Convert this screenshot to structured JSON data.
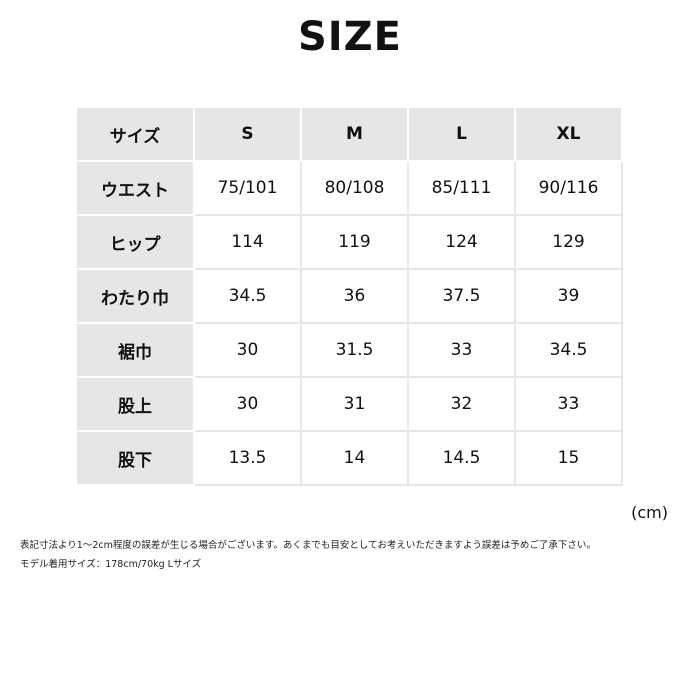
{
  "title": "SIZE",
  "table": {
    "header": [
      "サイズ",
      "S",
      "M",
      "L",
      "XL"
    ],
    "rows": [
      {
        "label": "ウエスト",
        "values": [
          "75/101",
          "80/108",
          "85/111",
          "90/116"
        ]
      },
      {
        "label": "ヒップ",
        "values": [
          "114",
          "119",
          "124",
          "129"
        ]
      },
      {
        "label": "わたり巾",
        "values": [
          "34.5",
          "36",
          "37.5",
          "39"
        ]
      },
      {
        "label": "裾巾",
        "values": [
          "30",
          "31.5",
          "33",
          "34.5"
        ]
      },
      {
        "label": "股上",
        "values": [
          "30",
          "31",
          "32",
          "33"
        ]
      },
      {
        "label": "股下",
        "values": [
          "13.5",
          "14",
          "14.5",
          "15"
        ]
      }
    ]
  },
  "unit": "(cm)",
  "notes": [
    "表記寸法より1～2cm程度の誤差が生じる場合がございます。あくまでも目安としてお考えいただきますよう誤差は予めご了承下さい。",
    "モデル着用サイズ：178cm/70kg Lサイズ"
  ]
}
